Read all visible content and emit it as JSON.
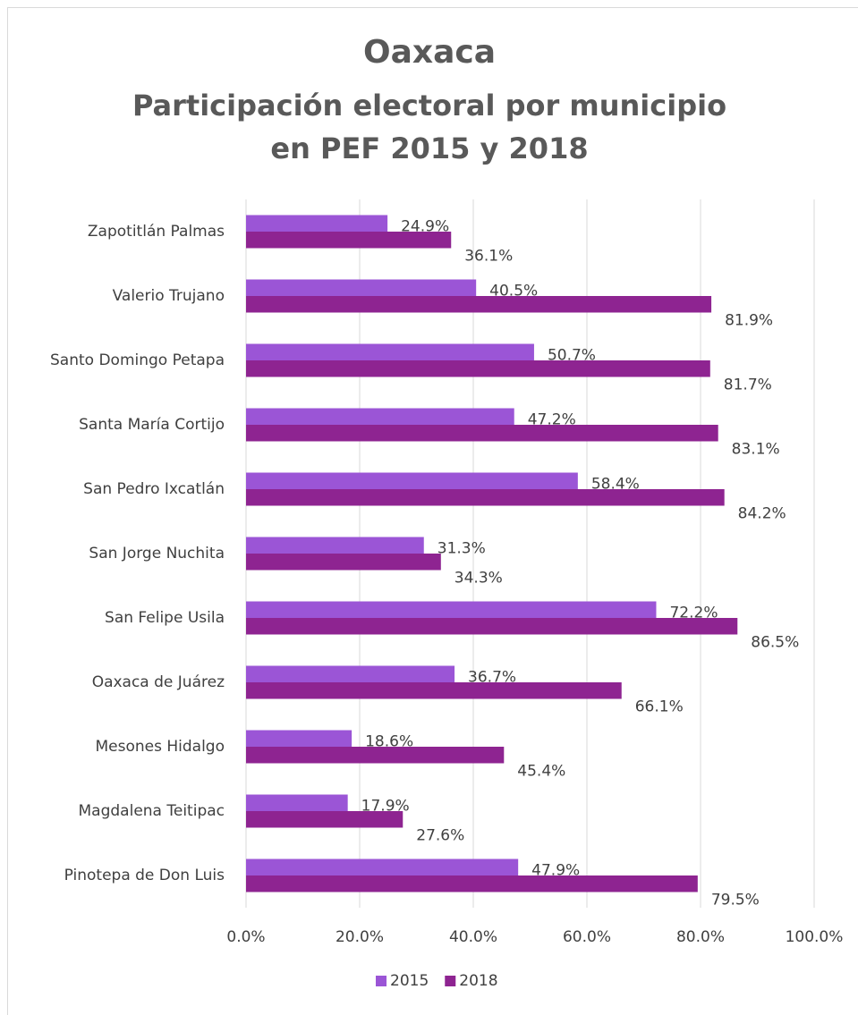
{
  "chart_data": {
    "type": "bar",
    "orientation": "horizontal",
    "title": "Oaxaca",
    "subtitle": "Participación electoral por municipio en PEF 2015 y 2018",
    "categories": [
      "Zapotitlán Palmas",
      "Valerio Trujano",
      "Santo Domingo Petapa",
      "Santa María Cortijo",
      "San Pedro Ixcatlán",
      "San Jorge Nuchita",
      "San Felipe Usila",
      "Oaxaca de Juárez",
      "Mesones Hidalgo",
      "Magdalena Teitipac",
      "Pinotepa de Don Luis"
    ],
    "series": [
      {
        "name": "2015",
        "color": "#9b55d6",
        "values": [
          24.9,
          40.5,
          50.7,
          47.2,
          58.4,
          31.3,
          72.2,
          36.7,
          18.6,
          17.9,
          47.9
        ],
        "value_labels": [
          "24.9%",
          "40.5%",
          "50.7%",
          "47.2%",
          "58.4%",
          "31.3%",
          "72.2%",
          "36.7%",
          "18.6%",
          "17.9%",
          "47.9%"
        ]
      },
      {
        "name": "2018",
        "color": "#8e2491",
        "values": [
          36.1,
          81.9,
          81.7,
          83.1,
          84.2,
          34.3,
          86.5,
          66.1,
          45.4,
          27.6,
          79.5
        ],
        "value_labels": [
          "36.1%",
          "81.9%",
          "81.7%",
          "83.1%",
          "84.2%",
          "34.3%",
          "86.5%",
          "66.1%",
          "45.4%",
          "27.6%",
          "79.5%"
        ]
      }
    ],
    "xlim": [
      0,
      100
    ],
    "xticks": [
      {
        "value": 0,
        "label": "0.0%"
      },
      {
        "value": 20,
        "label": "20.0%"
      },
      {
        "value": 40,
        "label": "40.0%"
      },
      {
        "value": 60,
        "label": "60.0%"
      },
      {
        "value": 80,
        "label": "80.0%"
      },
      {
        "value": 100,
        "label": "100.0%"
      }
    ],
    "grid": true,
    "legend": "bottom"
  }
}
